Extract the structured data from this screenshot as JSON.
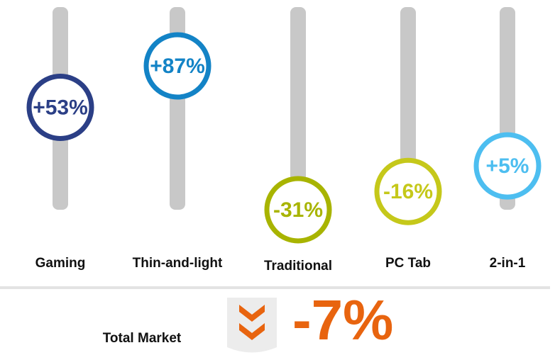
{
  "chart_data": {
    "type": "slider",
    "categories": [
      "Gaming",
      "Thin-and-light",
      "Traditional",
      "PC Tab",
      "2-in-1"
    ],
    "values": [
      53,
      87,
      -31,
      -16,
      5
    ],
    "value_labels": [
      "+53%",
      "+87%",
      "-31%",
      "-16%",
      "+5%"
    ],
    "colors": [
      "#2b3f86",
      "#1383c6",
      "#a8b400",
      "#c5c81a",
      "#4dbef0"
    ],
    "total": {
      "label": "Total Market",
      "value": -7,
      "value_label": "-7%",
      "color": "#e8640f"
    }
  }
}
